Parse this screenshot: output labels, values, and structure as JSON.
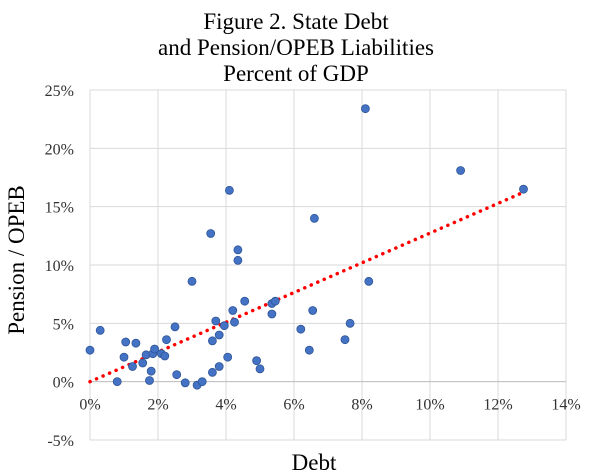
{
  "chart_data": {
    "type": "scatter",
    "title": [
      "Figure 2. State Debt",
      "and Pension/OPEB Liabilities",
      "Percent of GDP"
    ],
    "xlabel": "Debt",
    "ylabel": "Pension / OPEB",
    "xlim": [
      0,
      14
    ],
    "ylim": [
      -5,
      25
    ],
    "xticks": [
      0,
      2,
      4,
      6,
      8,
      10,
      12,
      14
    ],
    "yticks": [
      -5,
      0,
      5,
      10,
      15,
      20,
      25
    ],
    "xtick_labels": [
      "0%",
      "2%",
      "4%",
      "6%",
      "8%",
      "10%",
      "12%",
      "14%"
    ],
    "ytick_labels": [
      "-5%",
      "0%",
      "5%",
      "10%",
      "15%",
      "20%",
      "25%"
    ],
    "grid": true,
    "legend": "none",
    "marker_color": "#4472c4",
    "marker_edge_color": "#2f5597",
    "trendline": {
      "type": "linear",
      "style": "dotted",
      "color": "#ff0000",
      "from": [
        0,
        0.0
      ],
      "to": [
        12.8,
        16.3
      ]
    },
    "points": [
      {
        "x": 0.0,
        "y": 2.7
      },
      {
        "x": 0.3,
        "y": 4.4
      },
      {
        "x": 0.8,
        "y": 0.0
      },
      {
        "x": 1.0,
        "y": 2.1
      },
      {
        "x": 1.05,
        "y": 3.4
      },
      {
        "x": 1.25,
        "y": 1.3
      },
      {
        "x": 1.35,
        "y": 3.3
      },
      {
        "x": 1.55,
        "y": 1.6
      },
      {
        "x": 1.65,
        "y": 2.3
      },
      {
        "x": 1.75,
        "y": 0.1
      },
      {
        "x": 1.8,
        "y": 0.9
      },
      {
        "x": 1.85,
        "y": 2.4
      },
      {
        "x": 1.9,
        "y": 2.8
      },
      {
        "x": 2.1,
        "y": 2.4
      },
      {
        "x": 2.2,
        "y": 2.2
      },
      {
        "x": 2.25,
        "y": 3.6
      },
      {
        "x": 2.5,
        "y": 4.7
      },
      {
        "x": 2.55,
        "y": 0.6
      },
      {
        "x": 2.8,
        "y": -0.1
      },
      {
        "x": 3.0,
        "y": 8.6
      },
      {
        "x": 3.15,
        "y": -0.3
      },
      {
        "x": 3.3,
        "y": 0.0
      },
      {
        "x": 3.55,
        "y": 12.7
      },
      {
        "x": 3.6,
        "y": 3.5
      },
      {
        "x": 3.6,
        "y": 0.8
      },
      {
        "x": 3.7,
        "y": 5.2
      },
      {
        "x": 3.8,
        "y": 1.3
      },
      {
        "x": 3.8,
        "y": 4.0
      },
      {
        "x": 3.95,
        "y": 4.8
      },
      {
        "x": 4.05,
        "y": 2.1
      },
      {
        "x": 4.1,
        "y": 16.4
      },
      {
        "x": 4.2,
        "y": 6.1
      },
      {
        "x": 4.25,
        "y": 5.1
      },
      {
        "x": 4.35,
        "y": 11.3
      },
      {
        "x": 4.35,
        "y": 10.4
      },
      {
        "x": 4.55,
        "y": 6.9
      },
      {
        "x": 4.9,
        "y": 1.8
      },
      {
        "x": 5.0,
        "y": 1.1
      },
      {
        "x": 5.35,
        "y": 6.7
      },
      {
        "x": 5.35,
        "y": 5.8
      },
      {
        "x": 5.45,
        "y": 6.9
      },
      {
        "x": 6.2,
        "y": 4.5
      },
      {
        "x": 6.45,
        "y": 2.7
      },
      {
        "x": 6.55,
        "y": 6.1
      },
      {
        "x": 6.6,
        "y": 14.0
      },
      {
        "x": 7.5,
        "y": 3.6
      },
      {
        "x": 7.65,
        "y": 5.0
      },
      {
        "x": 8.1,
        "y": 23.4
      },
      {
        "x": 8.2,
        "y": 8.6
      },
      {
        "x": 10.9,
        "y": 18.1
      },
      {
        "x": 12.75,
        "y": 16.5
      }
    ]
  }
}
